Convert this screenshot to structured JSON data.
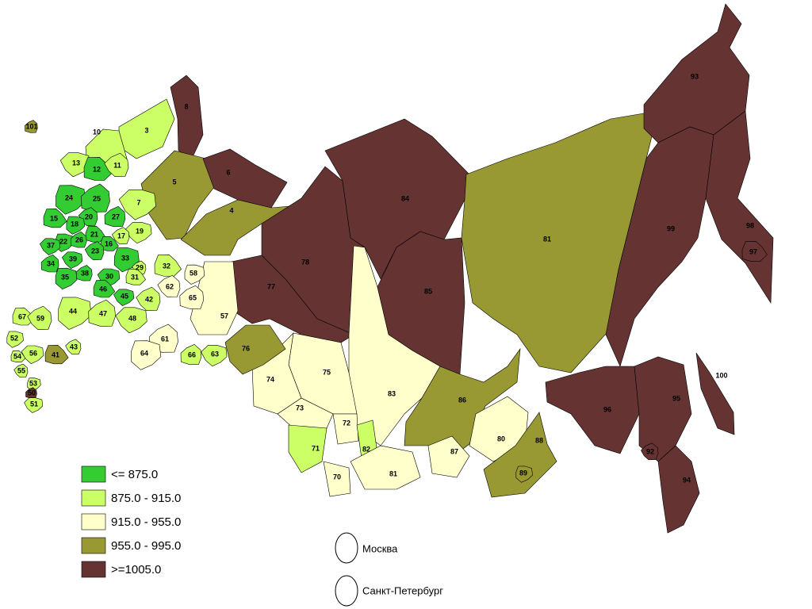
{
  "legend": [
    {
      "label": "<= 875.0",
      "color": "#33cc33"
    },
    {
      "label": "875.0 - 915.0",
      "color": "#ccff66"
    },
    {
      "label": "915.0 - 955.0",
      "color": "#ffffcc"
    },
    {
      "label": "955.0  - 995.0",
      "color": "#999933"
    },
    {
      "label": ">=1005.0",
      "color": "#663333"
    }
  ],
  "regions": [
    {
      "label": "8",
      "color": "#663333"
    },
    {
      "label": "3",
      "color": "#ccff66"
    },
    {
      "label": "10",
      "color": "#ccff66"
    },
    {
      "label": "5",
      "color": "#999933"
    },
    {
      "label": "6",
      "color": "#663333"
    },
    {
      "label": "4",
      "color": "#999933"
    },
    {
      "label": "78",
      "color": "#663333"
    },
    {
      "label": "77",
      "color": "#663333"
    },
    {
      "label": "84",
      "color": "#663333"
    },
    {
      "label": "85",
      "color": "#663333"
    },
    {
      "label": "81",
      "color": "#999933"
    },
    {
      "label": "93",
      "color": "#663333"
    },
    {
      "label": "99",
      "color": "#663333"
    },
    {
      "label": "98",
      "color": "#663333"
    },
    {
      "label": "83",
      "color": "#ffffcc"
    },
    {
      "label": "75",
      "color": "#ffffcc"
    },
    {
      "label": "74",
      "color": "#ffffcc"
    },
    {
      "label": "73",
      "color": "#ffffcc"
    },
    {
      "label": "71",
      "color": "#ccff66"
    },
    {
      "label": "70",
      "color": "#ffffcc"
    },
    {
      "label": "72",
      "color": "#ffffcc"
    },
    {
      "label": "82",
      "color": "#ccff66"
    },
    {
      "label": "81",
      "color": "#ffffcc"
    },
    {
      "label": "86",
      "color": "#999933"
    },
    {
      "label": "80",
      "color": "#ffffcc"
    },
    {
      "label": "88",
      "color": "#999933"
    },
    {
      "label": "87",
      "color": "#ffffcc"
    },
    {
      "label": "96",
      "color": "#663333"
    },
    {
      "label": "95",
      "color": "#663333"
    },
    {
      "label": "94",
      "color": "#663333"
    },
    {
      "label": "57",
      "color": "#ffffcc"
    },
    {
      "label": "76",
      "color": "#999933"
    },
    {
      "label": "97",
      "color": "#663333"
    },
    {
      "label": "92",
      "color": "#663333"
    },
    {
      "label": "89",
      "color": "#999933"
    },
    {
      "label": "101",
      "color": "#999933"
    },
    {
      "label": "13",
      "color": "#ccff66"
    },
    {
      "label": "12",
      "color": "#33cc33"
    },
    {
      "label": "11",
      "color": "#ccff66"
    },
    {
      "label": "24",
      "color": "#33cc33"
    },
    {
      "label": "25",
      "color": "#33cc33"
    },
    {
      "label": "7",
      "color": "#ccff66"
    },
    {
      "label": "15",
      "color": "#33cc33"
    },
    {
      "label": "20",
      "color": "#33cc33"
    },
    {
      "label": "18",
      "color": "#33cc33"
    },
    {
      "label": "27",
      "color": "#33cc33"
    },
    {
      "label": "19",
      "color": "#ccff66"
    },
    {
      "label": "21",
      "color": "#33cc33"
    },
    {
      "label": "17",
      "color": "#ccff66"
    },
    {
      "label": "22",
      "color": "#33cc33"
    },
    {
      "label": "26",
      "color": "#33cc33"
    },
    {
      "label": "37",
      "color": "#33cc33"
    },
    {
      "label": "16",
      "color": "#33cc33"
    },
    {
      "label": "23",
      "color": "#33cc33"
    },
    {
      "label": "33",
      "color": "#33cc33"
    },
    {
      "label": "34",
      "color": "#33cc33"
    },
    {
      "label": "39",
      "color": "#33cc33"
    },
    {
      "label": "32",
      "color": "#ccff66"
    },
    {
      "label": "29",
      "color": "#ccff66"
    },
    {
      "label": "35",
      "color": "#33cc33"
    },
    {
      "label": "38",
      "color": "#33cc33"
    },
    {
      "label": "30",
      "color": "#33cc33"
    },
    {
      "label": "31",
      "color": "#ccff66"
    },
    {
      "label": "62",
      "color": "#ffffcc"
    },
    {
      "label": "58",
      "color": "#ffffcc"
    },
    {
      "label": "65",
      "color": "#ffffcc"
    },
    {
      "label": "45",
      "color": "#33cc33"
    },
    {
      "label": "46",
      "color": "#33cc33"
    },
    {
      "label": "42",
      "color": "#ccff66"
    },
    {
      "label": "44",
      "color": "#ccff66"
    },
    {
      "label": "47",
      "color": "#ccff66"
    },
    {
      "label": "48",
      "color": "#ccff66"
    },
    {
      "label": "67",
      "color": "#ccff66"
    },
    {
      "label": "59",
      "color": "#ccff66"
    },
    {
      "label": "52",
      "color": "#ccff66"
    },
    {
      "label": "61",
      "color": "#ffffcc"
    },
    {
      "label": "56",
      "color": "#ccff66"
    },
    {
      "label": "41",
      "color": "#999933"
    },
    {
      "label": "43",
      "color": "#ccff66"
    },
    {
      "label": "64",
      "color": "#ffffcc"
    },
    {
      "label": "66",
      "color": "#ccff66"
    },
    {
      "label": "63",
      "color": "#ccff66"
    },
    {
      "label": "54",
      "color": "#ccff66"
    },
    {
      "label": "55",
      "color": "#ccff66"
    },
    {
      "label": "53",
      "color": "#ccff66"
    },
    {
      "label": "50",
      "color": "#663333"
    },
    {
      "label": "51",
      "color": "#ccff66"
    },
    {
      "label": "100",
      "color": "#663333"
    }
  ],
  "cities": [
    {
      "label": "Москва"
    },
    {
      "label": "Санкт-Петербург"
    }
  ]
}
